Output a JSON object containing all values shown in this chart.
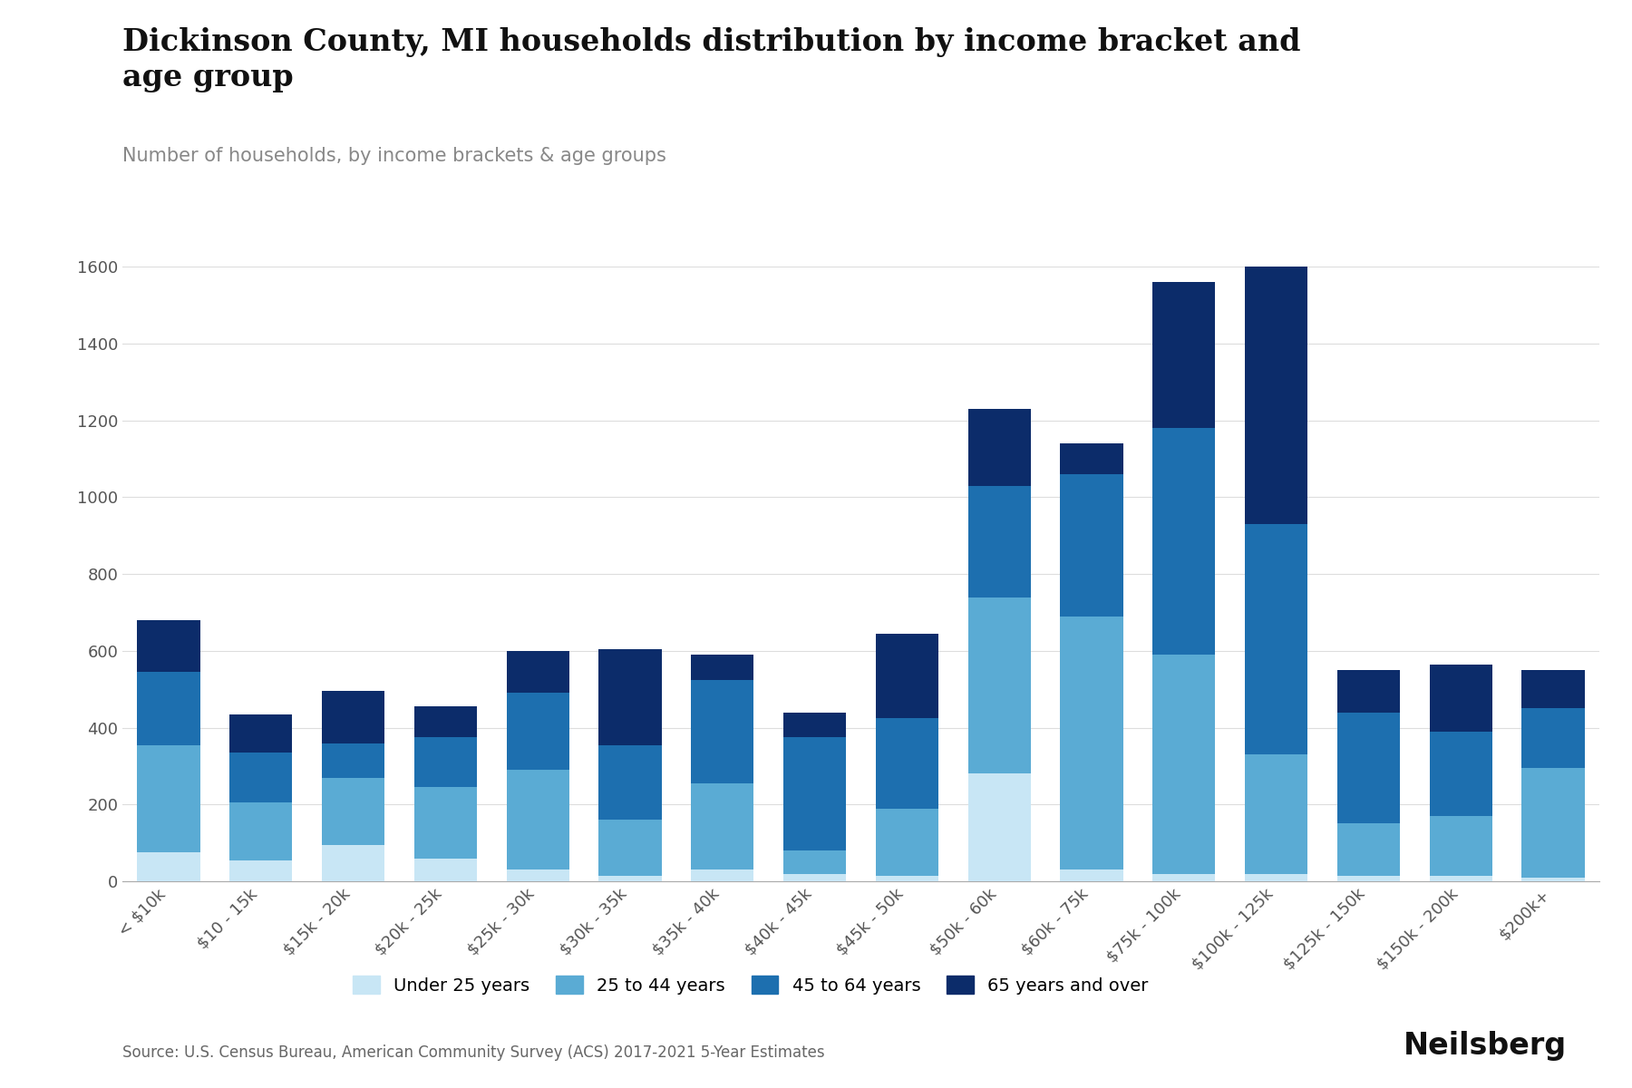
{
  "title": "Dickinson County, MI households distribution by income bracket and\nage group",
  "subtitle": "Number of households, by income brackets & age groups",
  "source": "Source: U.S. Census Bureau, American Community Survey (ACS) 2017-2021 5-Year Estimates",
  "categories": [
    "< $10k",
    "$10 - 15k",
    "$15k - 20k",
    "$20k - 25k",
    "$25k - 30k",
    "$30k - 35k",
    "$35k - 40k",
    "$40k - 45k",
    "$45k - 50k",
    "$50k - 60k",
    "$60k - 75k",
    "$75k - 100k",
    "$100k - 125k",
    "$125k - 150k",
    "$150k - 200k",
    "$200k+"
  ],
  "series": {
    "Under 25 years": [
      75,
      55,
      95,
      60,
      30,
      15,
      30,
      20,
      15,
      280,
      30,
      20,
      20,
      15,
      15,
      10
    ],
    "25 to 44 years": [
      280,
      150,
      175,
      185,
      260,
      145,
      225,
      60,
      175,
      460,
      660,
      570,
      310,
      135,
      155,
      285
    ],
    "45 to 64 years": [
      190,
      130,
      90,
      130,
      200,
      195,
      270,
      295,
      235,
      290,
      370,
      590,
      600,
      290,
      220,
      155
    ],
    "65 years and over": [
      135,
      100,
      135,
      80,
      110,
      250,
      65,
      65,
      220,
      200,
      80,
      380,
      670,
      110,
      175,
      100
    ]
  },
  "colors": {
    "Under 25 years": "#c8e6f5",
    "25 to 44 years": "#5aabd4",
    "45 to 64 years": "#1d6faf",
    "65 years and over": "#0c2c6a"
  },
  "ylim": [
    0,
    1700
  ],
  "yticks": [
    0,
    200,
    400,
    600,
    800,
    1000,
    1200,
    1400,
    1600
  ],
  "background_color": "#ffffff",
  "title_fontsize": 24,
  "subtitle_fontsize": 15,
  "tick_fontsize": 13,
  "legend_fontsize": 14,
  "source_fontsize": 12,
  "neilsberg_fontsize": 24
}
